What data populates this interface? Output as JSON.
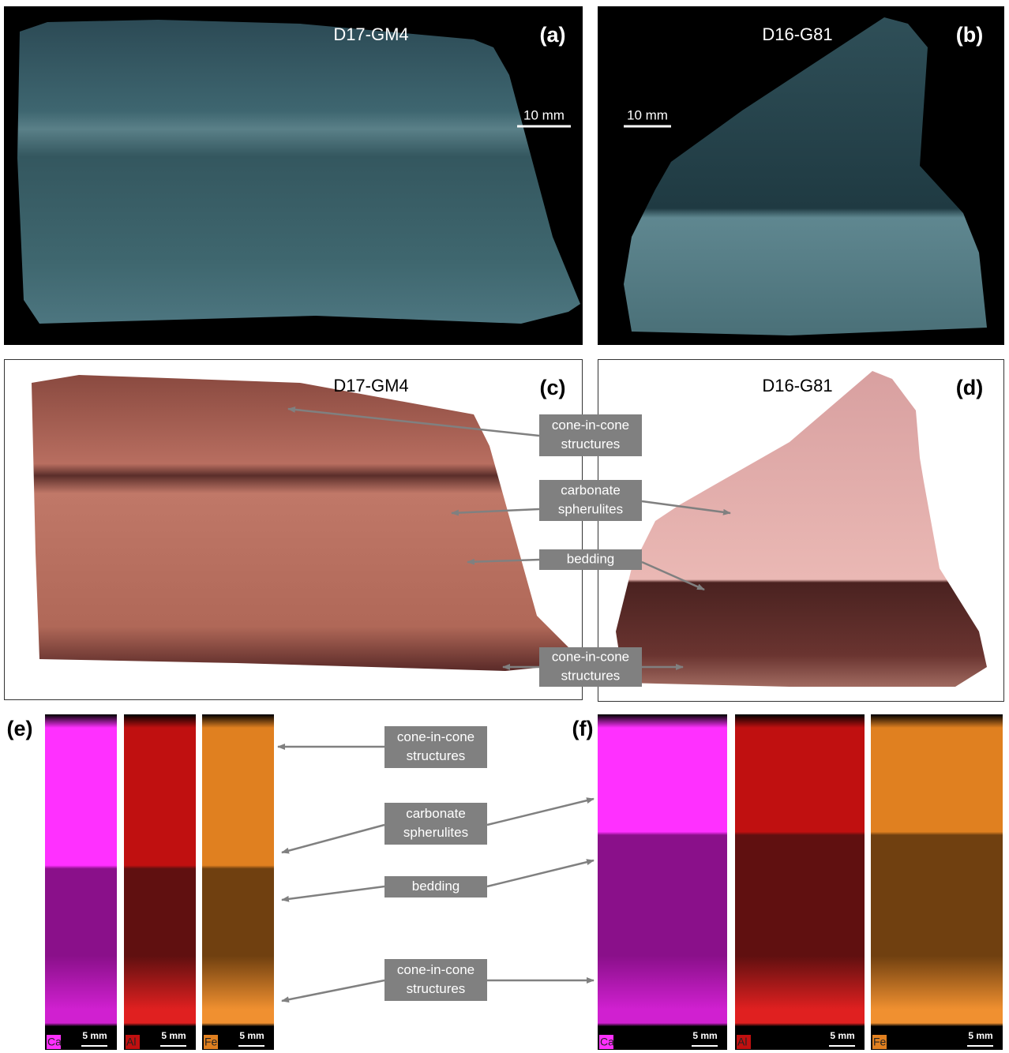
{
  "panels": {
    "a": {
      "label": "(a)",
      "sample": "D17-GM4",
      "scale_bar": "10 mm"
    },
    "b": {
      "label": "(b)",
      "sample": "D16-G81",
      "scale_bar": "10 mm"
    },
    "c": {
      "label": "(c)",
      "sample": "D17-GM4"
    },
    "d": {
      "label": "(d)",
      "sample": "D16-G81"
    },
    "e": {
      "label": "(e)",
      "elements": [
        "Ca",
        "Al",
        "Fe"
      ],
      "scale_bars": [
        "5 mm",
        "5 mm",
        "5 mm"
      ]
    },
    "f": {
      "label": "(f)",
      "elements": [
        "Ca",
        "Al",
        "Fe"
      ],
      "scale_bars": [
        "5 mm",
        "5 mm",
        "5 mm"
      ]
    }
  },
  "annotations_cd": [
    [
      "cone-in-cone",
      "structures"
    ],
    [
      "carbonate",
      "spherulites"
    ],
    [
      "bedding"
    ],
    [
      "cone-in-cone",
      "structures"
    ]
  ],
  "annotations_ef": [
    [
      "cone-in-cone",
      "structures"
    ],
    [
      "carbonate",
      "spherulites"
    ],
    [
      "bedding"
    ],
    [
      "cone-in-cone",
      "structures"
    ]
  ]
}
